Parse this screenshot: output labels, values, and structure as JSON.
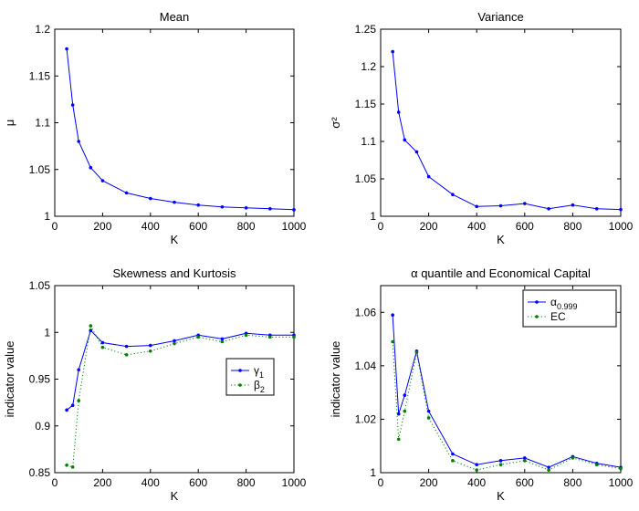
{
  "chart_data": [
    {
      "type": "line",
      "title": "Mean",
      "xlabel": "K",
      "ylabel": "μ",
      "xlim": [
        0,
        1000
      ],
      "ylim": [
        1,
        1.2
      ],
      "xticks": [
        0,
        200,
        400,
        600,
        800,
        1000
      ],
      "yticks": [
        1,
        1.05,
        1.1,
        1.15,
        1.2
      ],
      "ytick_labels": [
        "1",
        "1.05",
        "1.1",
        "1.15",
        "1.2"
      ],
      "grid": false,
      "series": [
        {
          "color": "#0000ff",
          "style": "solid-dot",
          "x": [
            50,
            75,
            100,
            150,
            200,
            300,
            400,
            500,
            600,
            700,
            800,
            900,
            1000
          ],
          "y": [
            1.179,
            1.119,
            1.08,
            1.052,
            1.038,
            1.025,
            1.019,
            1.015,
            1.012,
            1.01,
            1.009,
            1.008,
            1.007
          ]
        }
      ]
    },
    {
      "type": "line",
      "title": "Variance",
      "xlabel": "K",
      "ylabel": "σ²",
      "xlim": [
        0,
        1000
      ],
      "ylim": [
        1,
        1.25
      ],
      "xticks": [
        0,
        200,
        400,
        600,
        800,
        1000
      ],
      "yticks": [
        1,
        1.05,
        1.1,
        1.15,
        1.2,
        1.25
      ],
      "ytick_labels": [
        "1",
        "1.05",
        "1.1",
        "1.15",
        "1.2",
        "1.25"
      ],
      "grid": false,
      "series": [
        {
          "color": "#0000ff",
          "style": "solid-dot",
          "x": [
            50,
            75,
            100,
            150,
            200,
            300,
            400,
            500,
            600,
            700,
            800,
            900,
            1000
          ],
          "y": [
            1.22,
            1.139,
            1.102,
            1.086,
            1.053,
            1.029,
            1.013,
            1.014,
            1.017,
            1.01,
            1.015,
            1.01,
            1.009
          ]
        }
      ]
    },
    {
      "type": "line",
      "title": "Skewness and Kurtosis",
      "xlabel": "K",
      "ylabel": "indicator value",
      "xlim": [
        0,
        1000
      ],
      "ylim": [
        0.85,
        1.05
      ],
      "xticks": [
        0,
        200,
        400,
        600,
        800,
        1000
      ],
      "yticks": [
        0.85,
        0.9,
        0.95,
        1,
        1.05
      ],
      "ytick_labels": [
        "0.85",
        "0.9",
        "0.95",
        "1",
        "1.05"
      ],
      "grid": false,
      "legend": "center-right",
      "series": [
        {
          "name": "γ1",
          "name_base": "γ",
          "name_sub": "1",
          "color": "#0000ff",
          "style": "solid-dot",
          "x": [
            50,
            75,
            100,
            150,
            200,
            300,
            400,
            500,
            600,
            700,
            800,
            900,
            1000
          ],
          "y": [
            0.917,
            0.922,
            0.96,
            1.002,
            0.989,
            0.985,
            0.986,
            0.991,
            0.997,
            0.993,
            0.999,
            0.997,
            0.997
          ]
        },
        {
          "name": "β2",
          "name_base": "β",
          "name_sub": "2",
          "color": "#008000",
          "style": "dotted-dot",
          "x": [
            50,
            75,
            100,
            150,
            200,
            300,
            400,
            500,
            600,
            700,
            800,
            900,
            1000
          ],
          "y": [
            0.858,
            0.856,
            0.927,
            1.007,
            0.984,
            0.976,
            0.98,
            0.988,
            0.995,
            0.99,
            0.997,
            0.995,
            0.995
          ]
        }
      ]
    },
    {
      "type": "line",
      "title": "α quantile and Economical Capital",
      "xlabel": "K",
      "ylabel": "indicator value",
      "xlim": [
        0,
        1000
      ],
      "ylim": [
        1,
        1.07
      ],
      "xticks": [
        0,
        200,
        400,
        600,
        800,
        1000
      ],
      "yticks": [
        1,
        1.02,
        1.04,
        1.06
      ],
      "ytick_labels": [
        "1",
        "1.02",
        "1.04",
        "1.06"
      ],
      "grid": false,
      "legend": "top-right",
      "series": [
        {
          "name": "α0.999",
          "name_base": "α",
          "name_sub": "0.999",
          "color": "#0000ff",
          "style": "solid-dot",
          "x": [
            50,
            75,
            100,
            150,
            200,
            300,
            400,
            500,
            600,
            700,
            800,
            900,
            1000
          ],
          "y": [
            1.059,
            1.022,
            1.029,
            1.0455,
            1.023,
            1.007,
            1.003,
            1.0045,
            1.0055,
            1.002,
            1.006,
            1.0035,
            1.002
          ]
        },
        {
          "name": "EC",
          "name_base": "EC",
          "name_sub": "",
          "color": "#008000",
          "style": "dotted-dot",
          "x": [
            50,
            75,
            100,
            150,
            200,
            300,
            400,
            500,
            600,
            700,
            800,
            900,
            1000
          ],
          "y": [
            1.049,
            1.0125,
            1.023,
            1.045,
            1.0205,
            1.0045,
            1.001,
            1.003,
            1.0045,
            1.001,
            1.0055,
            1.003,
            1.0015
          ]
        }
      ]
    }
  ]
}
